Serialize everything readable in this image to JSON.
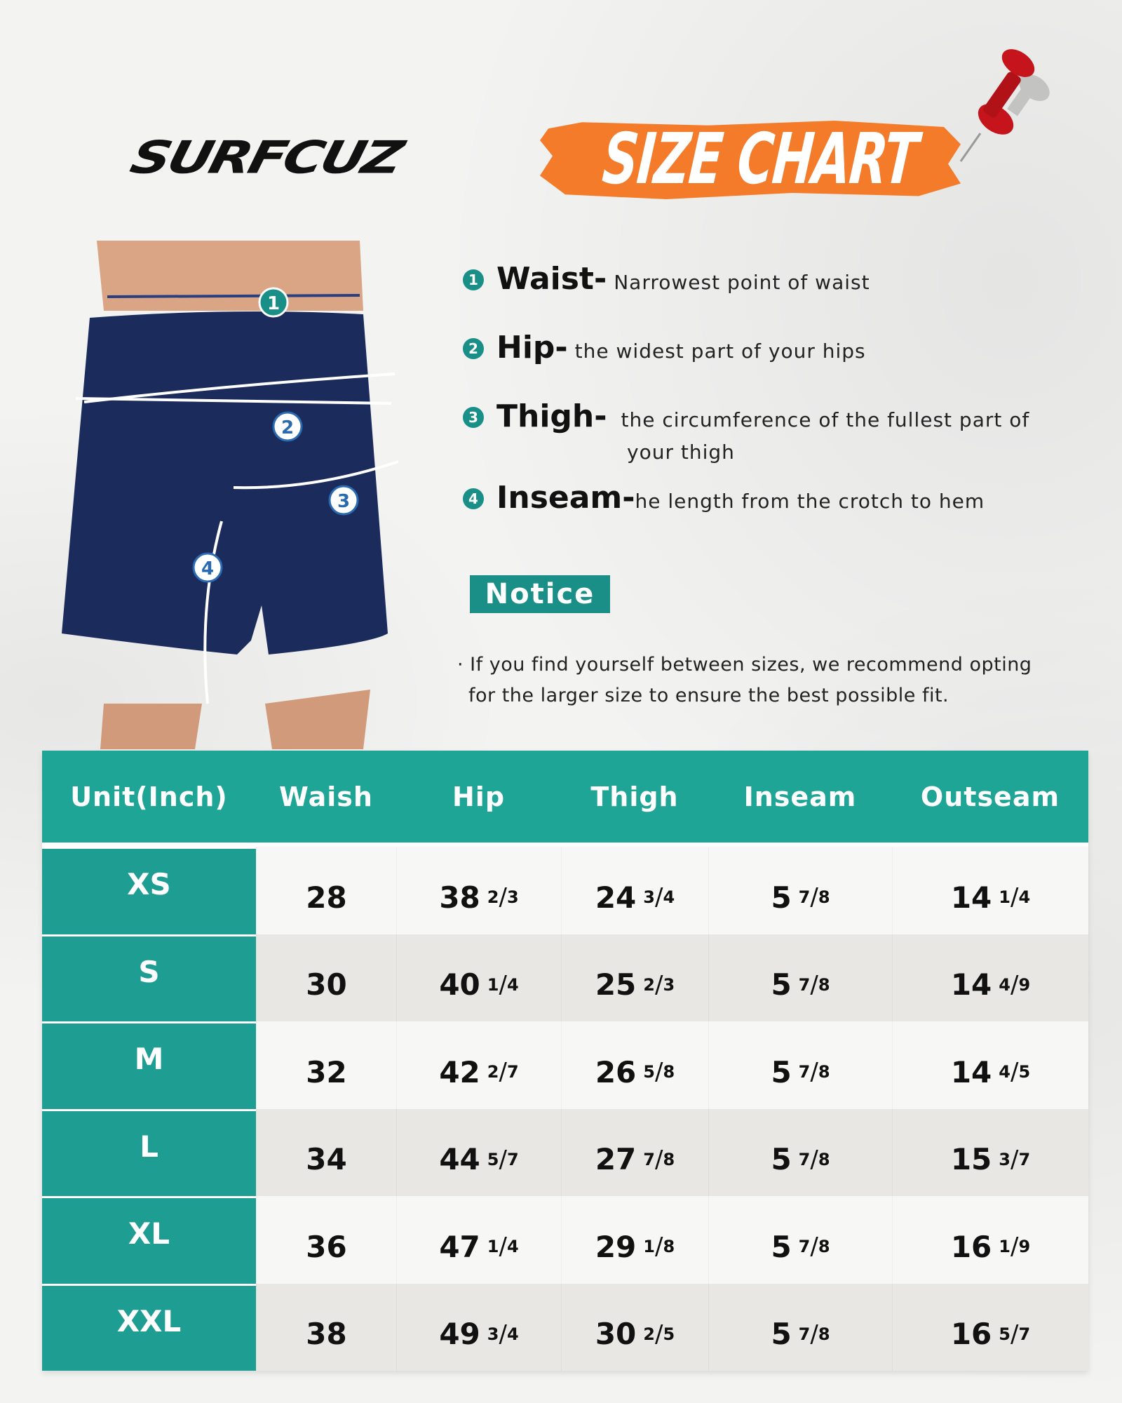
{
  "brand": "SURFCUZ",
  "title": "SIZE CHART",
  "colors": {
    "accent": "#1ea596",
    "banner": "#f47b2a",
    "shorts": "#1b2b5c"
  },
  "measurements": [
    {
      "n": "1",
      "label": "Waist-",
      "text": "Narrowest point of waist"
    },
    {
      "n": "2",
      "label": "Hip-",
      "text": "the widest part of your hips"
    },
    {
      "n": "3",
      "label": "Thigh-",
      "text": "the circumference of the fullest part of",
      "text2": "your thigh"
    },
    {
      "n": "4",
      "label": "Inseam-",
      "text": "he length from the crotch to hem"
    }
  ],
  "notice": {
    "label": "Notice",
    "line1": "· If you find yourself between sizes, we recommend opting",
    "line2": "for the larger size to ensure the best possible fit."
  },
  "table": {
    "headers": [
      "Unit(Inch)",
      "Waish",
      "Hip",
      "Thigh",
      "Inseam",
      "Outseam"
    ],
    "rows": [
      {
        "size": "XS",
        "cells": [
          {
            "w": "28"
          },
          {
            "w": "38",
            "n": "2",
            "d": "3"
          },
          {
            "w": "24",
            "n": "3",
            "d": "4"
          },
          {
            "w": "5",
            "n": "7",
            "d": "8"
          },
          {
            "w": "14",
            "n": "1",
            "d": "4"
          }
        ]
      },
      {
        "size": "S",
        "cells": [
          {
            "w": "30"
          },
          {
            "w": "40",
            "n": "1",
            "d": "4"
          },
          {
            "w": "25",
            "n": "2",
            "d": "3"
          },
          {
            "w": "5",
            "n": "7",
            "d": "8"
          },
          {
            "w": "14",
            "n": "4",
            "d": "9"
          }
        ]
      },
      {
        "size": "M",
        "cells": [
          {
            "w": "32"
          },
          {
            "w": "42",
            "n": "2",
            "d": "7"
          },
          {
            "w": "26",
            "n": "5",
            "d": "8"
          },
          {
            "w": "5",
            "n": "7",
            "d": "8"
          },
          {
            "w": "14",
            "n": "4",
            "d": "5"
          }
        ]
      },
      {
        "size": "L",
        "cells": [
          {
            "w": "34"
          },
          {
            "w": "44",
            "n": "5",
            "d": "7"
          },
          {
            "w": "27",
            "n": "7",
            "d": "8"
          },
          {
            "w": "5",
            "n": "7",
            "d": "8"
          },
          {
            "w": "15",
            "n": "3",
            "d": "7"
          }
        ]
      },
      {
        "size": "XL",
        "cells": [
          {
            "w": "36"
          },
          {
            "w": "47",
            "n": "1",
            "d": "4"
          },
          {
            "w": "29",
            "n": "1",
            "d": "8"
          },
          {
            "w": "5",
            "n": "7",
            "d": "8"
          },
          {
            "w": "16",
            "n": "1",
            "d": "9"
          }
        ]
      },
      {
        "size": "XXL",
        "cells": [
          {
            "w": "38"
          },
          {
            "w": "49",
            "n": "3",
            "d": "4"
          },
          {
            "w": "30",
            "n": "2",
            "d": "5"
          },
          {
            "w": "5",
            "n": "7",
            "d": "8"
          },
          {
            "w": "16",
            "n": "5",
            "d": "7"
          }
        ]
      }
    ]
  }
}
